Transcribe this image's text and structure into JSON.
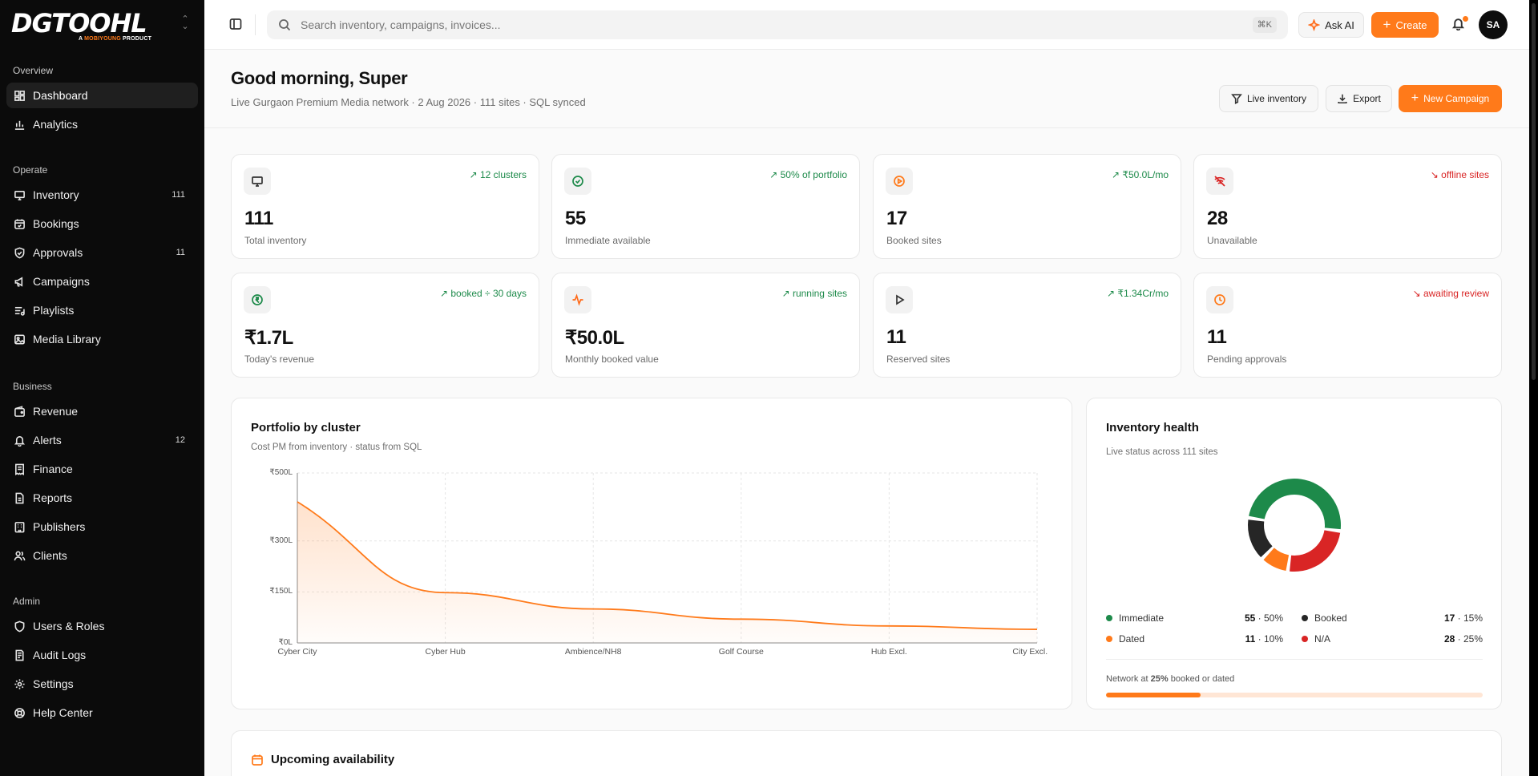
{
  "brand": {
    "logo": "DGTOOHL",
    "tagline_prefix": "A ",
    "tagline_highlight": "MOBIYOUNG",
    "tagline_suffix": " PRODUCT"
  },
  "sidebar": {
    "groups": [
      {
        "label": "Overview",
        "items": [
          {
            "label": "Dashboard",
            "icon": "dashboard-icon",
            "active": true
          },
          {
            "label": "Analytics",
            "icon": "analytics-icon"
          }
        ]
      },
      {
        "label": "Operate",
        "items": [
          {
            "label": "Inventory",
            "icon": "monitor-icon",
            "badge": "111"
          },
          {
            "label": "Bookings",
            "icon": "calendar-icon"
          },
          {
            "label": "Approvals",
            "icon": "shield-check-icon",
            "badge": "11"
          },
          {
            "label": "Campaigns",
            "icon": "megaphone-icon"
          },
          {
            "label": "Playlists",
            "icon": "playlist-icon"
          },
          {
            "label": "Media Library",
            "icon": "image-icon"
          }
        ]
      },
      {
        "label": "Business",
        "items": [
          {
            "label": "Revenue",
            "icon": "wallet-icon"
          },
          {
            "label": "Alerts",
            "icon": "bell-icon",
            "badge": "12"
          },
          {
            "label": "Finance",
            "icon": "receipt-icon"
          },
          {
            "label": "Reports",
            "icon": "report-icon"
          },
          {
            "label": "Publishers",
            "icon": "building-icon"
          },
          {
            "label": "Clients",
            "icon": "users-icon"
          }
        ]
      },
      {
        "label": "Admin",
        "items": [
          {
            "label": "Users & Roles",
            "icon": "shield-icon"
          },
          {
            "label": "Audit Logs",
            "icon": "log-icon"
          },
          {
            "label": "Settings",
            "icon": "gear-icon"
          },
          {
            "label": "Help Center",
            "icon": "lifebuoy-icon"
          }
        ]
      }
    ]
  },
  "topbar": {
    "search_placeholder": "Search inventory, campaigns, invoices...",
    "shortcut": "⌘K",
    "ask_ai_label": "Ask AI",
    "create_label": "Create",
    "avatar_initials": "SA"
  },
  "header": {
    "greeting": "Good morning, Super",
    "subtitle": "Live Gurgaon Premium Media network · 2 Aug 2026 · 111 sites · SQL synced",
    "live_inventory_label": "Live inventory",
    "export_label": "Export",
    "new_campaign_label": "New Campaign"
  },
  "kpis": [
    {
      "value": "111",
      "label": "Total inventory",
      "trend": "↗ 12 clusters",
      "dir": "up",
      "icon": "monitor-icon",
      "icon_color": "#333333"
    },
    {
      "value": "55",
      "label": "Immediate available",
      "trend": "↗ 50% of portfolio",
      "dir": "up",
      "icon": "check-circle-icon",
      "icon_color": "#1d8a4a"
    },
    {
      "value": "17",
      "label": "Booked sites",
      "trend": "↗ ₹50.0L/mo",
      "dir": "up",
      "icon": "play-circle-icon",
      "icon_color": "#ff7a1a"
    },
    {
      "value": "28",
      "label": "Unavailable",
      "trend": "↘ offline sites",
      "dir": "down",
      "icon": "wifi-off-icon",
      "icon_color": "#d92525"
    },
    {
      "value": "₹1.7L",
      "label": "Today's revenue",
      "trend": "↗ booked ÷ 30 days",
      "dir": "up",
      "icon": "rupee-circle-icon",
      "icon_color": "#1d8a4a"
    },
    {
      "value": "₹50.0L",
      "label": "Monthly booked value",
      "trend": "↗ running sites",
      "dir": "up",
      "icon": "activity-icon",
      "icon_color": "#ff6b1a"
    },
    {
      "value": "11",
      "label": "Reserved sites",
      "trend": "↗ ₹1.34Cr/mo",
      "dir": "up",
      "icon": "play-icon",
      "icon_color": "#333333"
    },
    {
      "value": "11",
      "label": "Pending approvals",
      "trend": "↘ awaiting review",
      "dir": "down",
      "icon": "clock-icon",
      "icon_color": "#ff7a1a"
    }
  ],
  "portfolio": {
    "title": "Portfolio by cluster",
    "subtitle": "Cost PM from inventory · status from SQL"
  },
  "chart_data": {
    "type": "area",
    "title": "Portfolio by cluster",
    "subtitle": "Cost PM from inventory · status from SQL",
    "categories": [
      "Cyber City",
      "Cyber Hub",
      "Ambience/NH8",
      "Golf Course",
      "Hub Excl.",
      "City Excl."
    ],
    "series": [
      {
        "values": [
          415,
          148,
          100,
          70,
          50,
          40
        ]
      }
    ],
    "y_ticks": [
      {
        "value": 0,
        "label": "₹0L"
      },
      {
        "value": 150,
        "label": "₹150L"
      },
      {
        "value": 300,
        "label": "₹300L"
      },
      {
        "value": 500,
        "label": "₹500L"
      }
    ],
    "ylim": [
      0,
      500
    ],
    "grid": true,
    "color": "#ff7a1a"
  },
  "health": {
    "title": "Inventory health",
    "subtitle": "Live status across 111 sites",
    "segments": [
      {
        "label": "Immediate",
        "count": "55",
        "pct": "50%",
        "value": 55,
        "color": "#1d8a4a"
      },
      {
        "label": "Booked",
        "count": "17",
        "pct": "15%",
        "value": 17,
        "color": "#262626"
      },
      {
        "label": "Dated",
        "count": "11",
        "pct": "10%",
        "value": 11,
        "color": "#ff7a1a"
      },
      {
        "label": "N/A",
        "count": "28",
        "pct": "25%",
        "value": 28,
        "color": "#d92525"
      }
    ],
    "footer_prefix": "Network at ",
    "footer_pct": "25%",
    "footer_suffix": " booked or dated",
    "progress_fraction": 0.25
  },
  "upcoming": {
    "title": "Upcoming availability"
  }
}
